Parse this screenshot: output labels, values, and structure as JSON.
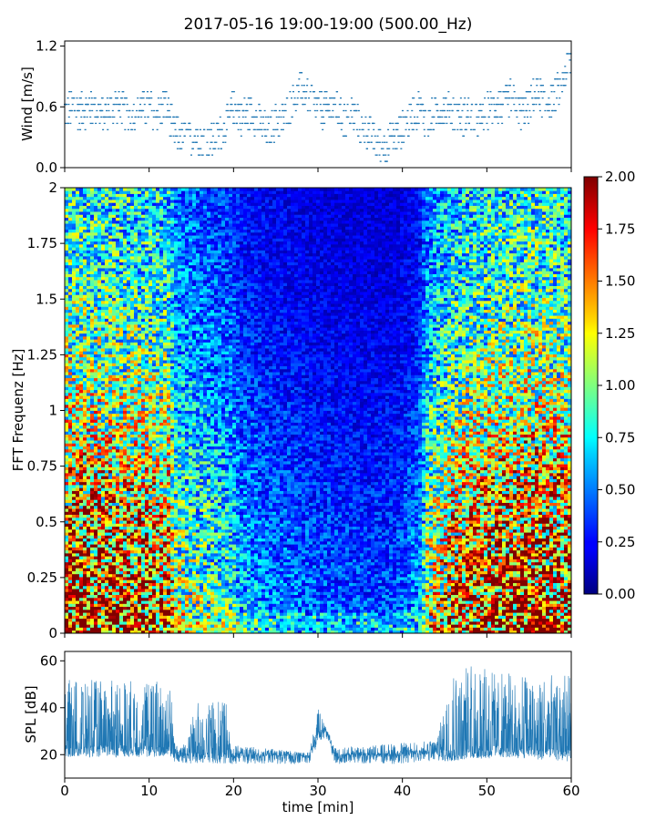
{
  "title": "2017-05-16 19:00-19:00 (500.00_Hz)",
  "chart_data": [
    {
      "type": "scatter",
      "name": "wind",
      "ylabel": "Wind [m/s]",
      "xlim": [
        0,
        60
      ],
      "ylim": [
        0,
        1.25
      ],
      "yticks": [
        "0.0",
        "0.6",
        "1.2"
      ],
      "ytick_values": [
        0,
        0.6,
        1.2
      ],
      "xticks": [
        0,
        10,
        20,
        30,
        40,
        50,
        60
      ],
      "series_color": "#1f77b4",
      "x": [
        0,
        1,
        2,
        3,
        4,
        5,
        6,
        7,
        8,
        9,
        10,
        11,
        12,
        13,
        14,
        15,
        16,
        17,
        18,
        19,
        20,
        21,
        22,
        23,
        24,
        25,
        26,
        27,
        28,
        29,
        30,
        31,
        32,
        33,
        34,
        35,
        36,
        37,
        38,
        39,
        40,
        41,
        42,
        43,
        44,
        45,
        46,
        47,
        48,
        49,
        50,
        51,
        52,
        53,
        54,
        55,
        56,
        57,
        58,
        59,
        60
      ],
      "y": [
        0.55,
        0.6,
        0.55,
        0.6,
        0.55,
        0.55,
        0.62,
        0.55,
        0.5,
        0.6,
        0.58,
        0.55,
        0.62,
        0.35,
        0.3,
        0.3,
        0.32,
        0.25,
        0.28,
        0.38,
        0.6,
        0.5,
        0.55,
        0.45,
        0.35,
        0.45,
        0.5,
        0.65,
        0.78,
        0.7,
        0.6,
        0.55,
        0.62,
        0.45,
        0.55,
        0.4,
        0.35,
        0.25,
        0.2,
        0.32,
        0.38,
        0.5,
        0.6,
        0.45,
        0.55,
        0.6,
        0.55,
        0.5,
        0.52,
        0.45,
        0.55,
        0.62,
        0.6,
        0.7,
        0.55,
        0.62,
        0.75,
        0.65,
        0.7,
        0.85,
        1.1
      ]
    },
    {
      "type": "heatmap",
      "name": "spectrogram",
      "ylabel": "FFT Frequenz [Hz]",
      "xlim": [
        0,
        60
      ],
      "ylim": [
        0,
        2
      ],
      "yticks": [
        "0",
        "0.25",
        "0.5",
        "0.75",
        "1",
        "1.25",
        "1.5",
        "1.75",
        "2"
      ],
      "ytick_values": [
        0,
        0.25,
        0.5,
        0.75,
        1,
        1.25,
        1.5,
        1.75,
        2
      ],
      "xticks": [
        0,
        10,
        20,
        30,
        40,
        50,
        60
      ],
      "colormap": "jet",
      "vmin": 0,
      "vmax": 2,
      "colorbar_ticks": [
        "0.00",
        "0.25",
        "0.50",
        "0.75",
        "1.00",
        "1.25",
        "1.50",
        "1.75",
        "2.00"
      ],
      "colorbar_tick_values": [
        0,
        0.25,
        0.5,
        0.75,
        1,
        1.25,
        1.5,
        1.75,
        2
      ],
      "time_intensity_profile": {
        "minutes": [
          0,
          6,
          12.5,
          13,
          20,
          21,
          25,
          30,
          35,
          39,
          42,
          43,
          46,
          50,
          55,
          60
        ],
        "level": [
          1.6,
          1.5,
          1.4,
          0.95,
          0.7,
          0.55,
          0.45,
          0.38,
          0.35,
          0.35,
          0.5,
          1.0,
          1.35,
          1.5,
          1.6,
          1.5
        ]
      },
      "frequency_profile": {
        "hz": [
          0,
          0.2,
          0.5,
          0.8,
          1.2,
          1.6,
          2.0
        ],
        "factor": [
          1.35,
          1.2,
          1.05,
          0.9,
          0.72,
          0.6,
          0.55
        ]
      }
    },
    {
      "type": "line",
      "name": "spl",
      "ylabel": "SPL [dB]",
      "xlabel": "time [min]",
      "xlim": [
        0,
        60
      ],
      "ylim": [
        10,
        64
      ],
      "yticks": [
        "20",
        "40",
        "60"
      ],
      "ytick_values": [
        20,
        40,
        60
      ],
      "xticks": [
        "0",
        "10",
        "20",
        "30",
        "40",
        "50",
        "60"
      ],
      "xtick_values": [
        0,
        10,
        20,
        30,
        40,
        50,
        60
      ],
      "series_color": "#1f77b4",
      "baseline": {
        "minutes": [
          0,
          12.5,
          13,
          15,
          20,
          29,
          30,
          31,
          32,
          40,
          42,
          45,
          50,
          51,
          60
        ],
        "db": [
          22,
          22,
          20,
          19,
          19,
          19,
          28,
          30,
          19,
          19,
          20,
          20,
          21,
          22,
          20
        ]
      },
      "envelope_top": {
        "minutes": [
          0,
          12.5,
          13,
          14.5,
          15,
          16,
          19,
          20,
          29,
          30,
          31,
          32,
          44,
          45,
          46,
          50,
          51,
          60
        ],
        "db": [
          52,
          52,
          26,
          24,
          35,
          44,
          44,
          24,
          21,
          40,
          32,
          23,
          26,
          45,
          58,
          58,
          55,
          54
        ]
      }
    }
  ]
}
